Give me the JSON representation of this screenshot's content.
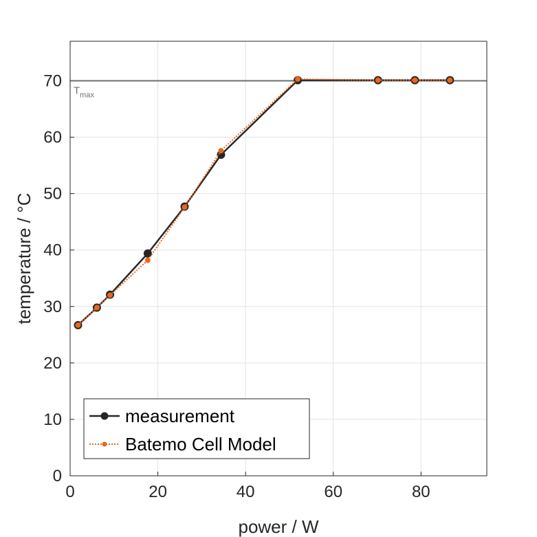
{
  "chart_data": {
    "type": "line",
    "title": "",
    "xlabel": "power / W",
    "ylabel": "temperature / °C",
    "xlim": [
      0,
      95
    ],
    "ylim": [
      0,
      77
    ],
    "x_ticks": [
      0,
      20,
      40,
      60,
      80
    ],
    "y_ticks": [
      0,
      10,
      20,
      30,
      40,
      50,
      60,
      70
    ],
    "grid": true,
    "legend_position": "bottom-left",
    "series": [
      {
        "name": "measurement",
        "color": "#262626",
        "line_style": "solid",
        "marker": "circle",
        "x": [
          1.8,
          6.1,
          9.1,
          17.7,
          26.1,
          34.4,
          51.9,
          70.2,
          78.6,
          86.6
        ],
        "y": [
          26.7,
          29.8,
          32.1,
          39.4,
          47.7,
          56.9,
          70.1,
          70.1,
          70.1,
          70.1
        ]
      },
      {
        "name": "Batemo Cell Model",
        "color": "#e8671c",
        "line_style": "dotted",
        "marker": "circle",
        "x": [
          1.8,
          6.1,
          9.1,
          17.7,
          26.1,
          34.4,
          51.9,
          70.2,
          78.6,
          86.6
        ],
        "y": [
          26.7,
          29.8,
          32.0,
          38.2,
          47.6,
          57.6,
          70.3,
          70.1,
          70.1,
          70.1
        ]
      }
    ],
    "reference_line": {
      "y": 70,
      "label_main": "T",
      "label_sub": "max",
      "color": "#6e6e6e"
    }
  }
}
